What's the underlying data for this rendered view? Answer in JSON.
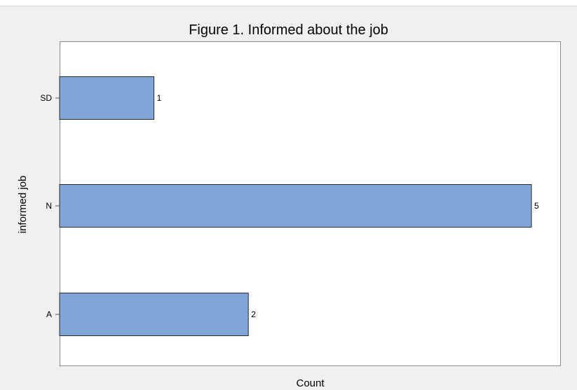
{
  "chart_data": {
    "type": "bar",
    "orientation": "horizontal",
    "title": "Figure 1. Informed about the job",
    "xlabel": "Count",
    "ylabel": "informed job",
    "categories": [
      "SD",
      "N",
      "A"
    ],
    "values": [
      1,
      5,
      2
    ],
    "data_labels": [
      "1",
      "5",
      "2"
    ],
    "xlim": [
      0,
      5
    ],
    "bar_color": "#7fa6d6",
    "bar_edge_color": "#2b2b2b",
    "grid": false,
    "x_tick_labels_shown": false
  }
}
